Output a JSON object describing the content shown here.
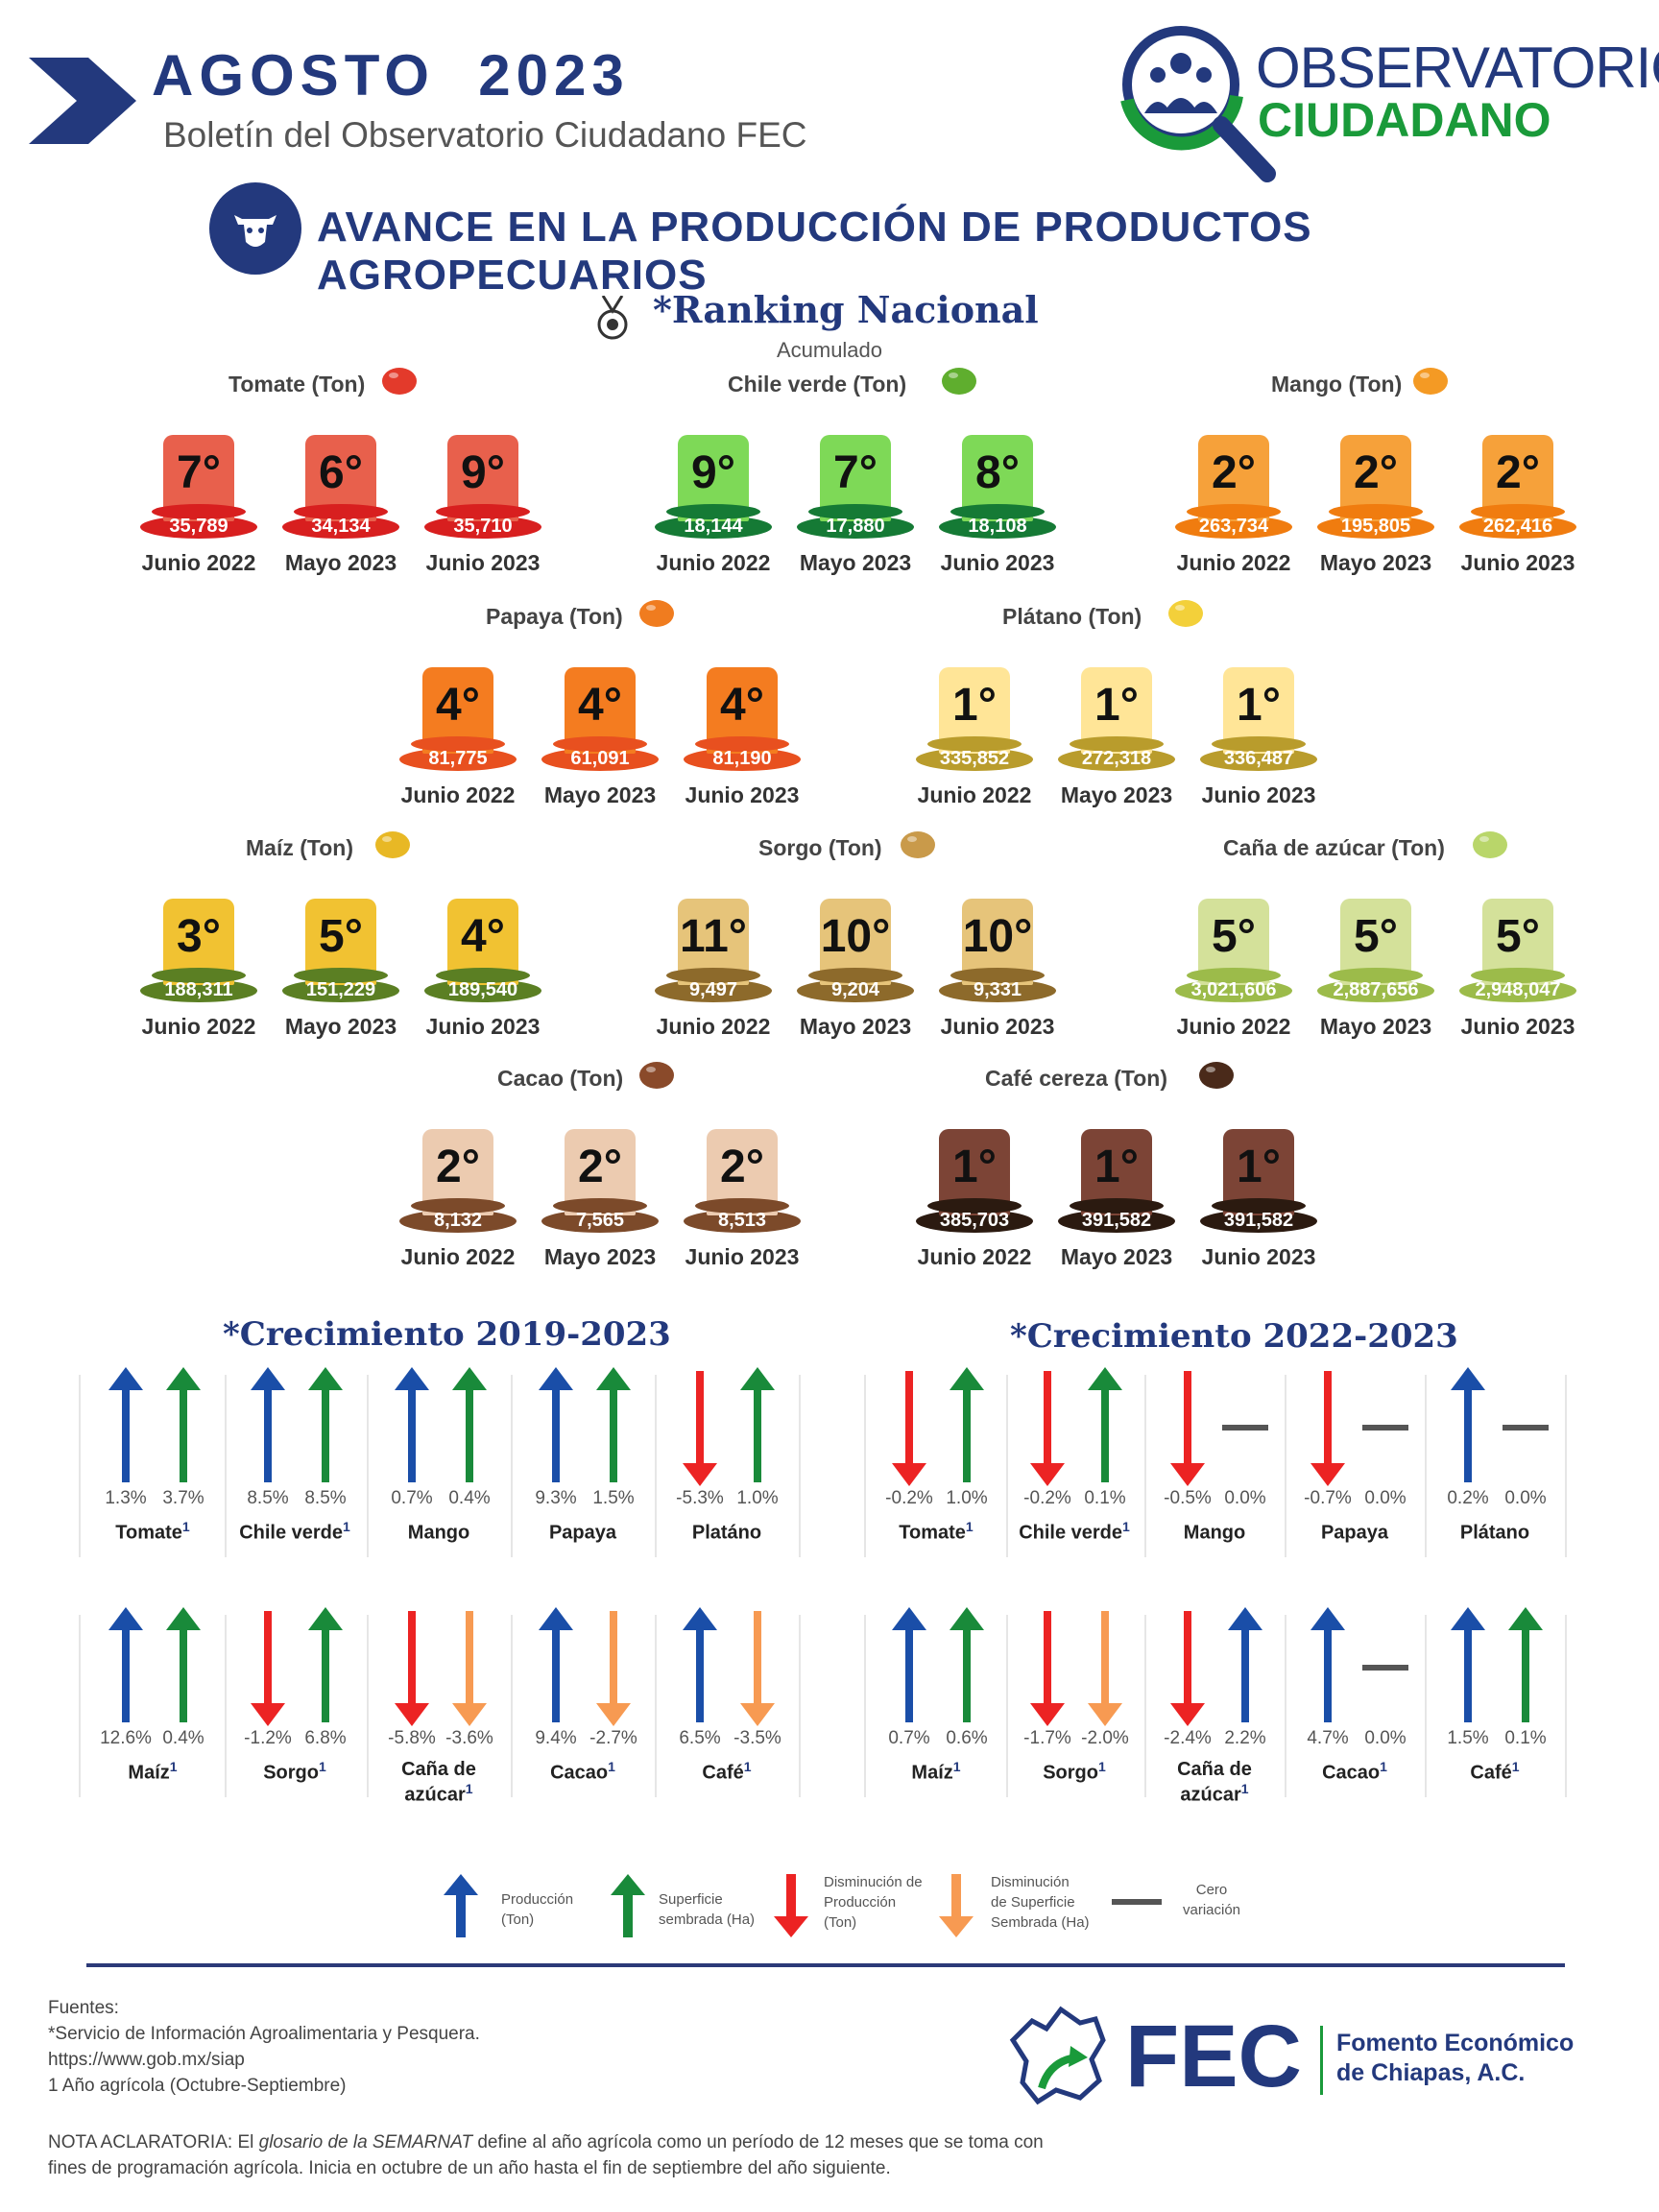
{
  "header": {
    "month_title": "AGOSTO  2023",
    "subtitle": "Boletín del Observatorio Ciudadano FEC",
    "logo_word1": "OBSERVATORIO",
    "logo_word2": "CIUDADANO",
    "section_title": "AVANCE EN LA PRODUCCIÓN DE PRODUCTOS AGROPECUARIOS"
  },
  "ranking": {
    "title": "*Ranking Nacional",
    "subtitle": "Acumulado",
    "period_labels": [
      "Junio 2022",
      "Mayo 2023",
      "Junio 2023"
    ],
    "products": [
      {
        "label": "Tomate (Ton)",
        "icon": "tomato-icon",
        "color": "#e8604c",
        "band": "#d81f1f",
        "ranks": [
          "7°",
          "6°",
          "9°"
        ],
        "values": [
          "35,789",
          "34,134",
          "35,710"
        ]
      },
      {
        "label": "Chile verde (Ton)",
        "icon": "chili-icon",
        "color": "#7ed957",
        "band": "#157a35",
        "ranks": [
          "9°",
          "7°",
          "8°"
        ],
        "values": [
          "18,144",
          "17,880",
          "18,108"
        ]
      },
      {
        "label": "Mango (Ton)",
        "icon": "mango-icon",
        "color": "#f6a13a",
        "band": "#f07c0f",
        "ranks": [
          "2°",
          "2°",
          "2°"
        ],
        "values": [
          "263,734",
          "195,805",
          "262,416"
        ]
      },
      {
        "label": "Papaya (Ton)",
        "icon": "papaya-icon",
        "color": "#f47c20",
        "band": "#e8501f",
        "ranks": [
          "4°",
          "4°",
          "4°"
        ],
        "values": [
          "81,775",
          "61,091",
          "81,190"
        ]
      },
      {
        "label": "Plátano (Ton)",
        "icon": "banana-icon",
        "color": "#ffe597",
        "band": "#b99c2c",
        "ranks": [
          "1°",
          "1°",
          "1°"
        ],
        "values": [
          "335,852",
          "272,318",
          "336,487"
        ]
      },
      {
        "label": "Maíz (Ton)",
        "icon": "corn-icon",
        "color": "#f1c232",
        "band": "#5b7f23",
        "ranks": [
          "3°",
          "5°",
          "4°"
        ],
        "values": [
          "188,311",
          "151,229",
          "189,540"
        ]
      },
      {
        "label": "Sorgo (Ton)",
        "icon": "sorghum-icon",
        "color": "#e6c47a",
        "band": "#8d6a2b",
        "ranks": [
          "11°",
          "10°",
          "10°"
        ],
        "values": [
          "9,497",
          "9,204",
          "9,331"
        ]
      },
      {
        "label": "Caña de azúcar (Ton)",
        "icon": "sugarcane-icon",
        "color": "#d4e19a",
        "band": "#9cbb4a",
        "ranks": [
          "5°",
          "5°",
          "5°"
        ],
        "values": [
          "3,021,606",
          "2,887,656",
          "2,948,047"
        ]
      },
      {
        "label": "Cacao (Ton)",
        "icon": "cacao-icon",
        "color": "#eccbb0",
        "band": "#7c4a2a",
        "ranks": [
          "2°",
          "2°",
          "2°"
        ],
        "values": [
          "8,132",
          "7,565",
          "8,513"
        ]
      },
      {
        "label": "Café cereza (Ton)",
        "icon": "coffee-beans-icon",
        "color": "#7c4436",
        "band": "#2b1a10",
        "ranks": [
          "1°",
          "1°",
          "1°"
        ],
        "values": [
          "385,703",
          "391,582",
          "391,582"
        ]
      }
    ]
  },
  "growth_2019": {
    "title": "*Crecimiento 2019-2023",
    "items": [
      {
        "name": "Tomate",
        "sup": "1",
        "prod": "up",
        "surf": "up",
        "prod_pct": "1.3%",
        "surf_pct": "3.7%"
      },
      {
        "name": "Chile verde",
        "sup": "1",
        "prod": "up",
        "surf": "up",
        "prod_pct": "8.5%",
        "surf_pct": "8.5%"
      },
      {
        "name": "Mango",
        "sup": "",
        "prod": "up",
        "surf": "up",
        "prod_pct": "0.7%",
        "surf_pct": "0.4%"
      },
      {
        "name": "Papaya",
        "sup": "",
        "prod": "up",
        "surf": "up",
        "prod_pct": "9.3%",
        "surf_pct": "1.5%"
      },
      {
        "name": "Platáno",
        "sup": "",
        "prod": "down",
        "surf": "up",
        "prod_pct": "-5.3%",
        "surf_pct": "1.0%"
      },
      {
        "name": "Maíz",
        "sup": "1",
        "prod": "up",
        "surf": "up",
        "prod_pct": "12.6%",
        "surf_pct": "0.4%"
      },
      {
        "name": "Sorgo",
        "sup": "1",
        "prod": "down",
        "surf": "up",
        "prod_pct": "-1.2%",
        "surf_pct": "6.8%"
      },
      {
        "name": "Caña de azúcar",
        "sup": "1",
        "prod": "down",
        "surf": "down",
        "prod_pct": "-5.8%",
        "surf_pct": "-3.6%"
      },
      {
        "name": "Cacao",
        "sup": "1",
        "prod": "up",
        "surf": "down",
        "prod_pct": "9.4%",
        "surf_pct": "-2.7%"
      },
      {
        "name": "Café",
        "sup": "1",
        "prod": "up",
        "surf": "down",
        "prod_pct": "6.5%",
        "surf_pct": "-3.5%"
      }
    ]
  },
  "growth_2022": {
    "title": "*Crecimiento 2022-2023",
    "items": [
      {
        "name": "Tomate",
        "sup": "1",
        "prod": "down",
        "surf": "up",
        "prod_pct": "-0.2%",
        "surf_pct": "1.0%"
      },
      {
        "name": "Chile verde",
        "sup": "1",
        "prod": "down",
        "surf": "up",
        "prod_pct": "-0.2%",
        "surf_pct": "0.1%"
      },
      {
        "name": "Mango",
        "sup": "",
        "prod": "down",
        "surf": "zero",
        "prod_pct": "-0.5%",
        "surf_pct": "0.0%"
      },
      {
        "name": "Papaya",
        "sup": "",
        "prod": "down",
        "surf": "zero",
        "prod_pct": "-0.7%",
        "surf_pct": "0.0%"
      },
      {
        "name": "Plátano",
        "sup": "",
        "prod": "up",
        "surf": "zero",
        "prod_pct": "0.2%",
        "surf_pct": "0.0%"
      },
      {
        "name": "Maíz",
        "sup": "1",
        "prod": "up",
        "surf": "up",
        "prod_pct": "0.7%",
        "surf_pct": "0.6%"
      },
      {
        "name": "Sorgo",
        "sup": "1",
        "prod": "down",
        "surf": "down",
        "prod_pct": "-1.7%",
        "surf_pct": "-2.0%"
      },
      {
        "name": "Caña de azúcar",
        "sup": "1",
        "prod": "down",
        "surf": "up-blue",
        "prod_pct": "-2.4%",
        "surf_pct": "2.2%"
      },
      {
        "name": "Cacao",
        "sup": "1",
        "prod": "up",
        "surf": "zero",
        "prod_pct": "4.7%",
        "surf_pct": "0.0%"
      },
      {
        "name": "Café",
        "sup": "1",
        "prod": "up",
        "surf": "up",
        "prod_pct": "1.5%",
        "surf_pct": "0.1%"
      }
    ]
  },
  "legend": [
    {
      "kind": "prod-up",
      "text": [
        "Producción",
        "(Ton)"
      ]
    },
    {
      "kind": "surf-up",
      "text": [
        "Superficie",
        "sembrada (Ha)"
      ]
    },
    {
      "kind": "prod-down",
      "text": [
        "Disminución de",
        "Producción",
        "(Ton)"
      ]
    },
    {
      "kind": "surf-down",
      "text": [
        "Disminución",
        "de  Superficie",
        "Sembrada (Ha)"
      ]
    },
    {
      "kind": "zero",
      "text": [
        "Cero",
        "variación"
      ]
    }
  ],
  "colors": {
    "navy": "#23397d",
    "up_blue": "#1a4ea8",
    "up_green": "#198a3a",
    "down_red": "#ec2323",
    "down_orange": "#f79a52",
    "zero_gray": "#555555"
  },
  "footer": {
    "sources": [
      "Fuentes:",
      "*Servicio de Información Agroalimentaria y Pesquera.",
      "https://www.gob.mx/siap",
      "1 Año agrícola (Octubre-Septiembre)"
    ],
    "nota_prefix": "NOTA ACLARATORIA: El ",
    "nota_italic": "glosario de la SEMARNAT",
    "nota_rest": " define al año agrícola como un período de 12 meses que se toma con fines de programación agrícola. Inicia en octubre de un año hasta el fin de septiembre del año siguiente.",
    "fec": "FEC",
    "fec_name_1": "Fomento Económico",
    "fec_name_2": "de Chiapas, A.C."
  }
}
